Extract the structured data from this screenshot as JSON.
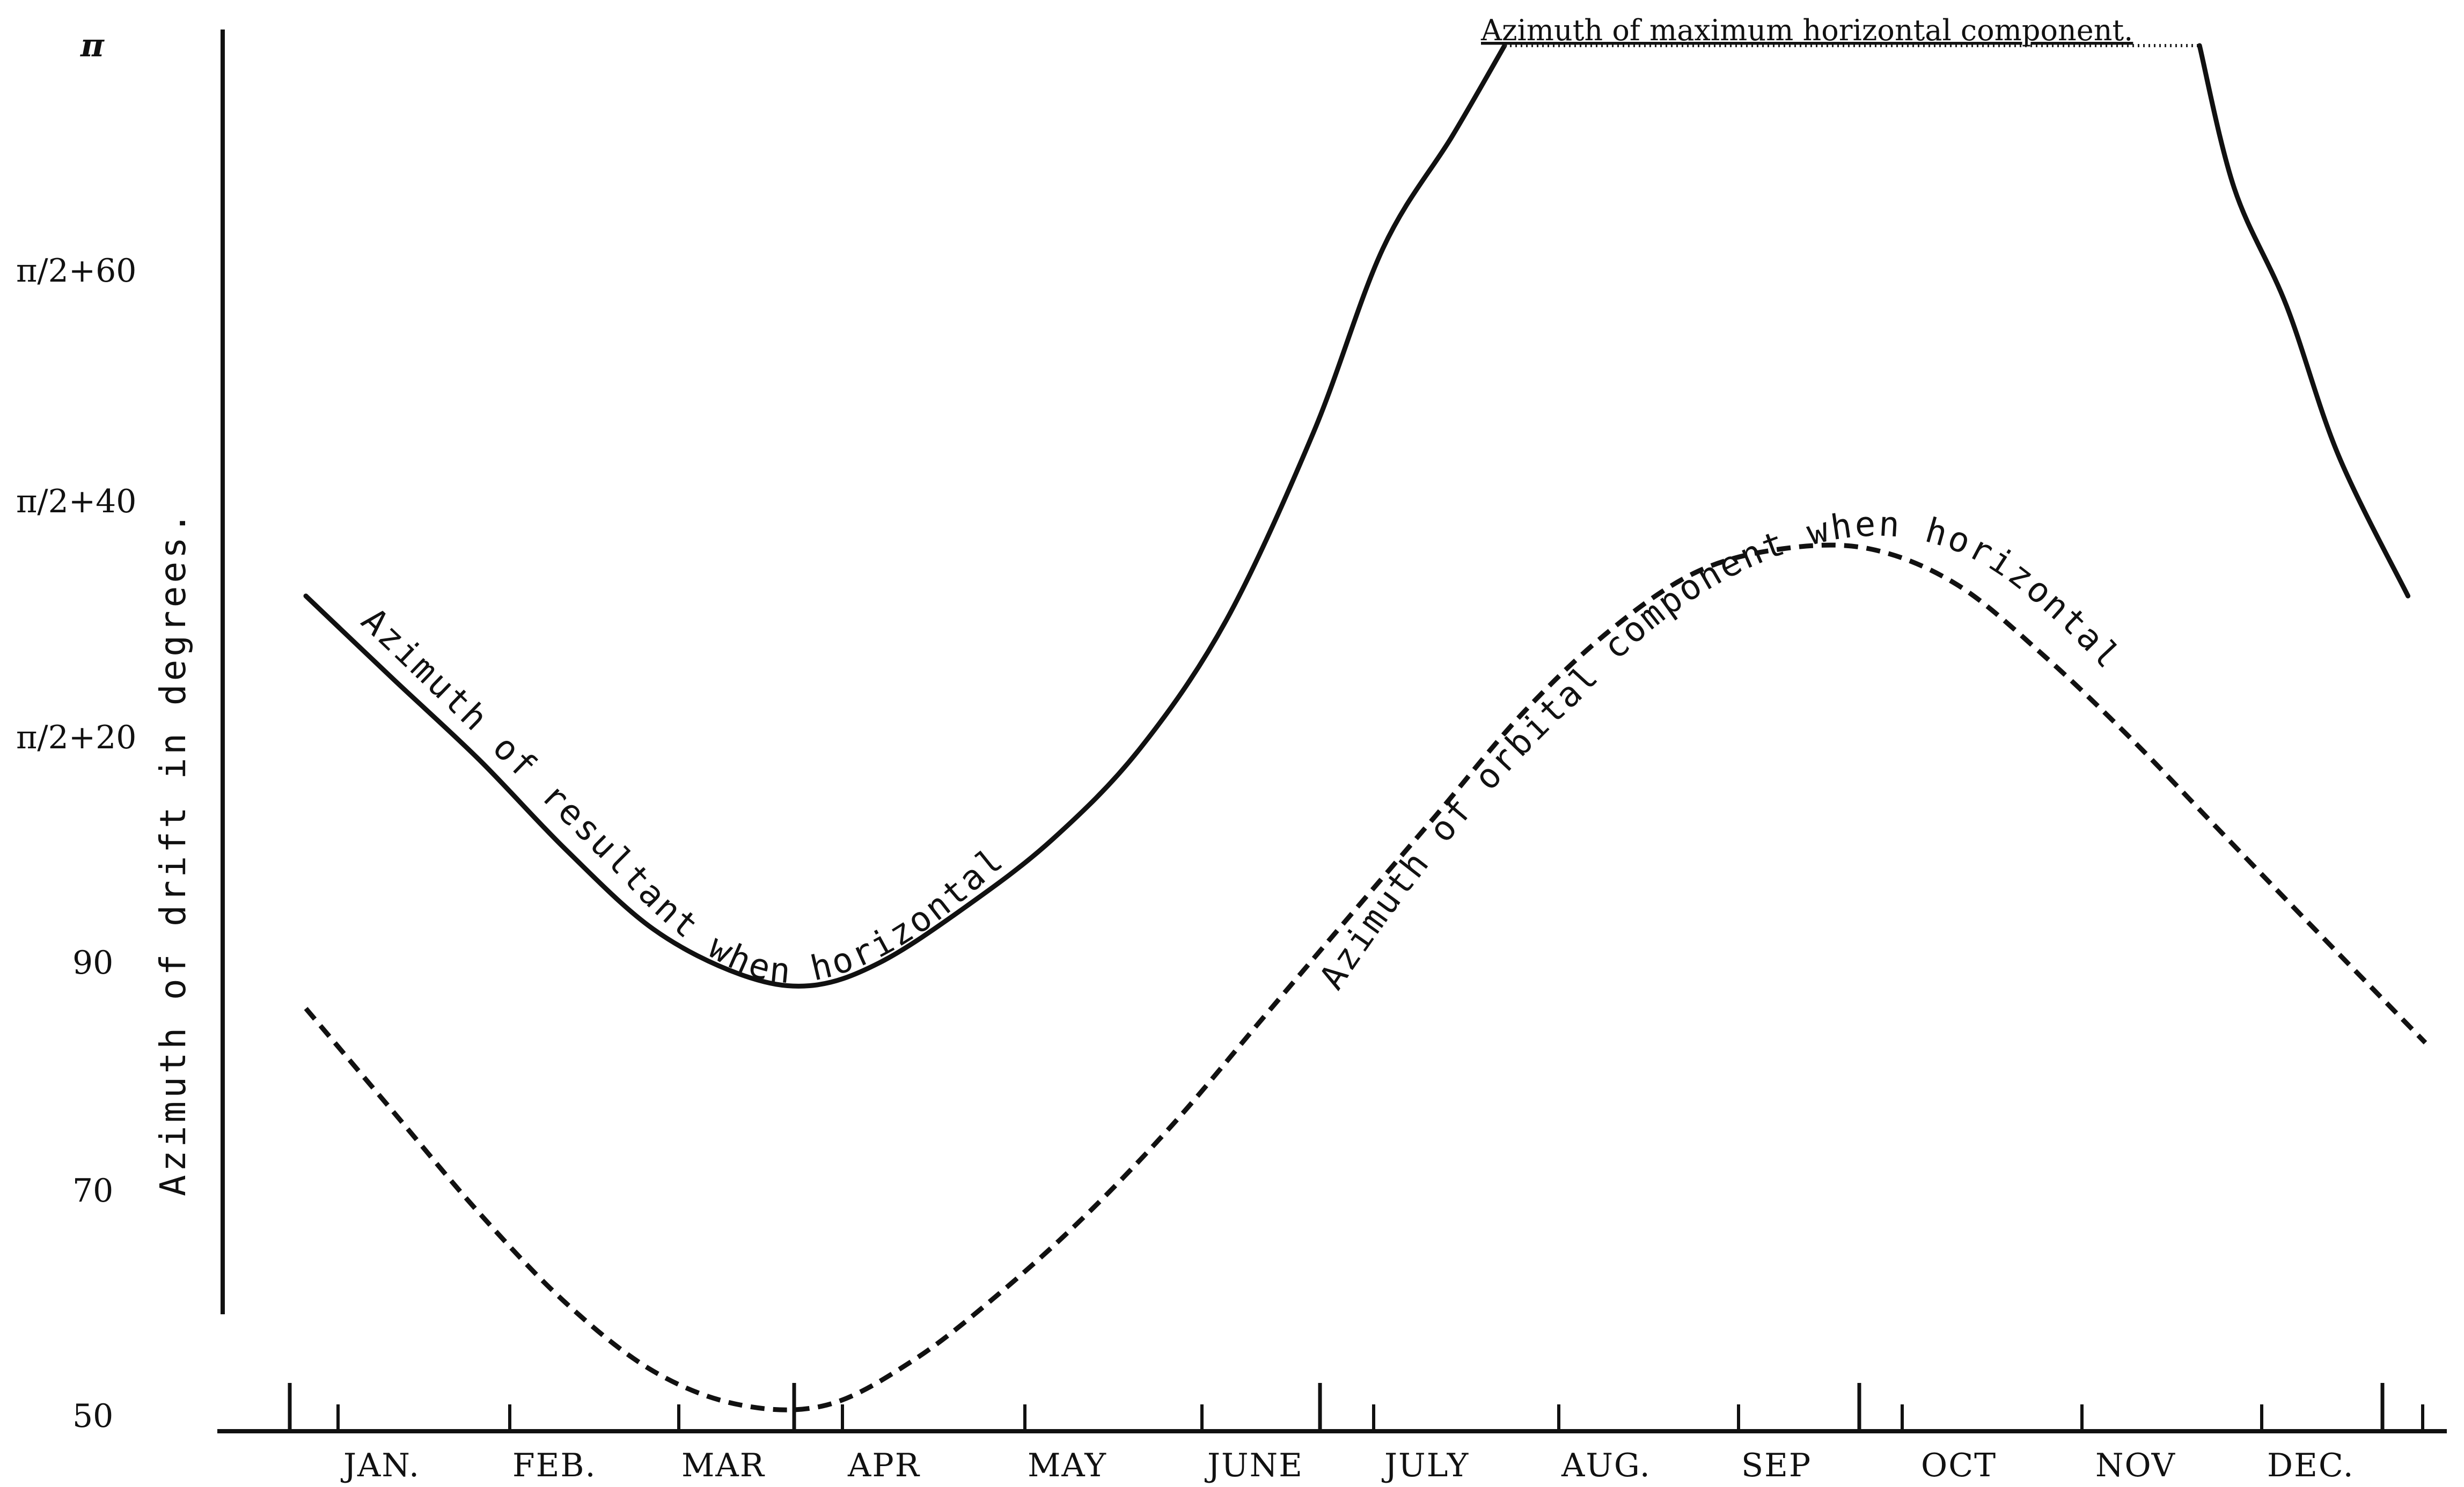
{
  "chart_data": {
    "type": "line",
    "xlabel": "",
    "ylabel": "Azimuth of drift in degrees.",
    "y_tick_labels": [
      "50",
      "70",
      "90",
      "π/2+20",
      "π/2+40",
      "π/2+60",
      "π"
    ],
    "y_tick_values": [
      50,
      70,
      90,
      110,
      130,
      150,
      180
    ],
    "categories": [
      "JAN.",
      "FEB.",
      "MAR",
      "APR",
      "MAY",
      "JUNE",
      "JULY",
      "AUG.",
      "SEP",
      "OCT",
      "NOV",
      "DEC."
    ],
    "xlim": [
      0,
      12.2
    ],
    "ylim": [
      50,
      180
    ],
    "grid": false,
    "series": [
      {
        "name": "Azimuth of resultant when horizontal",
        "line_style": "solid",
        "x": [
          0.0,
          0.5,
          1.0,
          1.5,
          2.0,
          2.5,
          2.9,
          3.3,
          3.8,
          4.3,
          4.8,
          5.3,
          5.8,
          6.2,
          6.6,
          6.9
        ],
        "y": [
          122,
          115,
          108,
          100,
          93,
          89,
          88,
          90,
          95,
          101,
          109,
          120,
          136,
          153,
          168,
          180
        ]
      },
      {
        "name": "Azimuth of maximum horizontal component",
        "line_style": "dotted",
        "x": [
          6.9,
          10.9
        ],
        "y": [
          180,
          180
        ]
      },
      {
        "name": "",
        "line_style": "solid",
        "x": [
          10.9,
          11.1,
          11.4,
          11.7,
          12.1
        ],
        "y": [
          180,
          161,
          147,
          134,
          122
        ]
      },
      {
        "name": "Azimuth of orbital component when horizontal",
        "line_style": "dashed",
        "x": [
          0.0,
          0.5,
          1.0,
          1.5,
          2.0,
          2.5,
          3.0,
          3.5,
          4.0,
          4.5,
          5.0,
          5.5,
          6.0,
          6.5,
          7.0,
          7.5,
          8.0,
          8.5,
          9.0,
          9.5,
          10.0,
          10.5,
          11.0,
          11.5,
          12.2
        ],
        "y": [
          86,
          77,
          68,
          60,
          54,
          51,
          51,
          55,
          61,
          68,
          76,
          85,
          94,
          103,
          112,
          119,
          124,
          126,
          126,
          123,
          117,
          110,
          102,
          94,
          83
        ]
      }
    ],
    "top_annotation": "Azimuth of maximum horizontal component."
  }
}
